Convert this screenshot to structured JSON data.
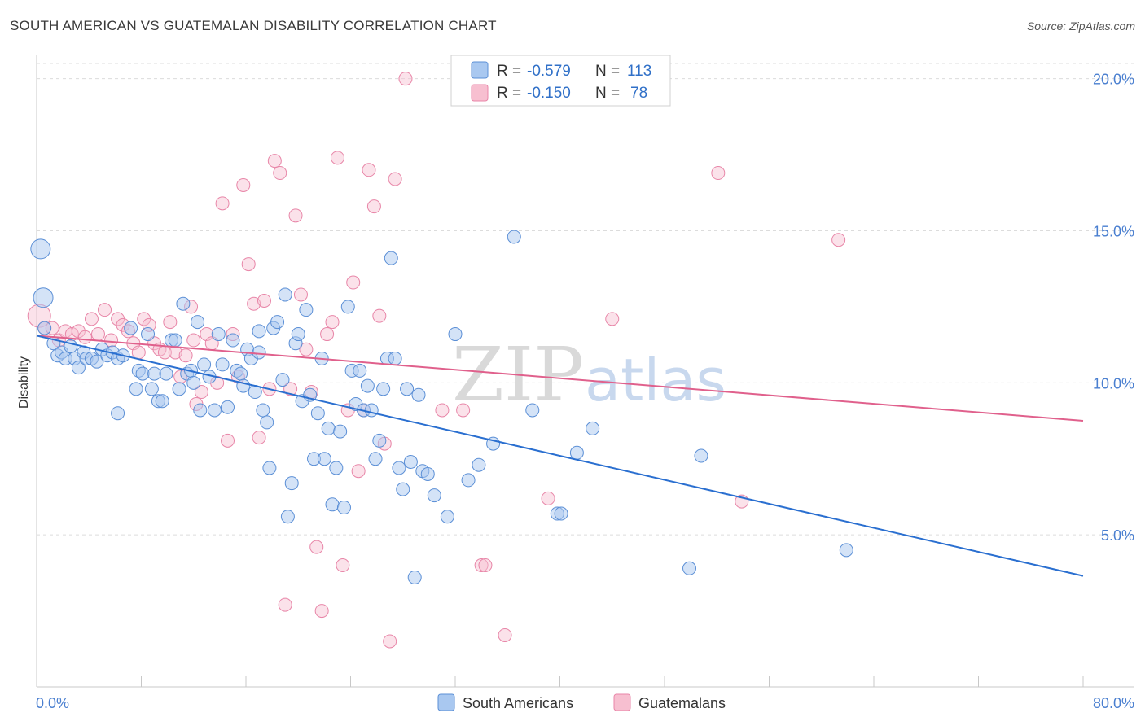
{
  "title": "SOUTH AMERICAN VS GUATEMALAN DISABILITY CORRELATION CHART",
  "source": "Source: ZipAtlas.com",
  "watermark": {
    "zip": "ZIP",
    "atlas": "atlas"
  },
  "colors": {
    "blue_fill": "#a9c8f0",
    "blue_stroke": "#5b8fd6",
    "blue_line": "#2a6fd0",
    "pink_fill": "#f7bfd0",
    "pink_stroke": "#e886a8",
    "pink_line": "#e0608c",
    "tick_text": "#4a7fd0"
  },
  "legend": {
    "rows": [
      {
        "r_label": "R =",
        "r_value": "-0.579",
        "n_label": "N =",
        "n_value": "113"
      },
      {
        "r_label": "R =",
        "r_value": "-0.150",
        "n_label": "N =",
        "n_value": "78"
      }
    ]
  },
  "bottom_legend": [
    "South Americans",
    "Guatemalans"
  ],
  "chart_data": {
    "type": "scatter",
    "title": "SOUTH AMERICAN VS GUATEMALAN DISABILITY CORRELATION CHART",
    "xlabel": "",
    "ylabel": "Disability",
    "xlim": [
      0,
      80
    ],
    "ylim": [
      0,
      20.5
    ],
    "x_tick_labels": [
      "0.0%",
      "80.0%"
    ],
    "y_ticks": [
      5,
      10,
      15,
      20
    ],
    "y_tick_labels": [
      "5.0%",
      "10.0%",
      "15.0%",
      "20.0%"
    ],
    "grid": "horizontal dashed",
    "legend_position": "top-center",
    "series": [
      {
        "name": "South Americans",
        "color": "#a9c8f0",
        "trend": {
          "x": [
            0,
            80
          ],
          "y": [
            11.55,
            3.65
          ]
        },
        "points": [
          [
            0.3,
            14.4
          ],
          [
            0.5,
            12.8
          ],
          [
            0.6,
            11.8
          ],
          [
            1.3,
            11.3
          ],
          [
            1.6,
            10.9
          ],
          [
            1.9,
            11.0
          ],
          [
            2.2,
            10.8
          ],
          [
            2.6,
            11.2
          ],
          [
            2.9,
            10.8
          ],
          [
            3.2,
            10.5
          ],
          [
            3.6,
            11.0
          ],
          [
            3.8,
            10.8
          ],
          [
            4.2,
            10.8
          ],
          [
            4.6,
            10.7
          ],
          [
            5.0,
            11.1
          ],
          [
            5.4,
            10.9
          ],
          [
            5.8,
            11.0
          ],
          [
            6.2,
            10.8
          ],
          [
            6.6,
            10.9
          ],
          [
            6.2,
            9.0
          ],
          [
            7.2,
            11.8
          ],
          [
            7.6,
            9.8
          ],
          [
            7.8,
            10.4
          ],
          [
            8.1,
            10.3
          ],
          [
            8.5,
            11.6
          ],
          [
            8.8,
            9.8
          ],
          [
            9.0,
            10.3
          ],
          [
            9.3,
            9.4
          ],
          [
            9.6,
            9.4
          ],
          [
            9.9,
            10.3
          ],
          [
            10.3,
            11.4
          ],
          [
            10.6,
            11.4
          ],
          [
            10.9,
            9.8
          ],
          [
            11.2,
            12.6
          ],
          [
            11.5,
            10.3
          ],
          [
            11.8,
            10.4
          ],
          [
            12.0,
            10.0
          ],
          [
            12.3,
            12.0
          ],
          [
            12.5,
            9.1
          ],
          [
            12.8,
            10.6
          ],
          [
            13.2,
            10.2
          ],
          [
            13.6,
            9.1
          ],
          [
            13.9,
            11.6
          ],
          [
            14.2,
            10.6
          ],
          [
            14.6,
            9.2
          ],
          [
            15.0,
            11.4
          ],
          [
            15.3,
            10.4
          ],
          [
            15.6,
            10.3
          ],
          [
            15.8,
            9.9
          ],
          [
            16.1,
            11.1
          ],
          [
            16.4,
            10.8
          ],
          [
            16.7,
            9.7
          ],
          [
            17.0,
            11.7
          ],
          [
            17.3,
            9.1
          ],
          [
            17.6,
            8.7
          ],
          [
            17.8,
            7.2
          ],
          [
            18.1,
            11.8
          ],
          [
            18.4,
            12.0
          ],
          [
            18.8,
            10.1
          ],
          [
            19.0,
            12.9
          ],
          [
            19.2,
            5.6
          ],
          [
            19.5,
            6.7
          ],
          [
            19.8,
            11.3
          ],
          [
            20.0,
            11.6
          ],
          [
            20.3,
            9.4
          ],
          [
            20.6,
            12.4
          ],
          [
            20.9,
            9.6
          ],
          [
            21.2,
            7.5
          ],
          [
            21.5,
            9.0
          ],
          [
            21.8,
            10.8
          ],
          [
            22.0,
            7.5
          ],
          [
            22.3,
            8.5
          ],
          [
            22.6,
            6.0
          ],
          [
            22.9,
            7.2
          ],
          [
            23.2,
            8.4
          ],
          [
            23.5,
            5.9
          ],
          [
            23.8,
            12.5
          ],
          [
            24.1,
            10.4
          ],
          [
            24.4,
            9.3
          ],
          [
            24.7,
            10.4
          ],
          [
            25.0,
            9.1
          ],
          [
            25.3,
            9.9
          ],
          [
            25.6,
            9.1
          ],
          [
            25.9,
            7.5
          ],
          [
            26.2,
            8.1
          ],
          [
            26.5,
            9.8
          ],
          [
            26.8,
            10.8
          ],
          [
            27.1,
            14.1
          ],
          [
            27.4,
            10.8
          ],
          [
            27.7,
            7.2
          ],
          [
            28.0,
            6.5
          ],
          [
            28.3,
            9.8
          ],
          [
            28.6,
            7.4
          ],
          [
            28.9,
            3.6
          ],
          [
            29.2,
            9.6
          ],
          [
            29.5,
            7.1
          ],
          [
            29.9,
            7.0
          ],
          [
            30.4,
            6.3
          ],
          [
            31.4,
            5.6
          ],
          [
            32.0,
            11.6
          ],
          [
            33.0,
            6.8
          ],
          [
            33.8,
            7.3
          ],
          [
            34.9,
            8.0
          ],
          [
            36.5,
            14.8
          ],
          [
            37.9,
            9.1
          ],
          [
            39.8,
            5.7
          ],
          [
            40.1,
            5.7
          ],
          [
            41.3,
            7.7
          ],
          [
            42.5,
            8.5
          ],
          [
            49.9,
            3.9
          ],
          [
            50.8,
            7.6
          ],
          [
            61.9,
            4.5
          ],
          [
            17.0,
            11.0
          ]
        ]
      },
      {
        "name": "Guatemalans",
        "color": "#f7bfd0",
        "trend": {
          "x": [
            0,
            80
          ],
          "y": [
            11.55,
            8.75
          ]
        },
        "points": [
          [
            0.2,
            12.2
          ],
          [
            0.6,
            11.8
          ],
          [
            1.2,
            11.8
          ],
          [
            1.7,
            11.4
          ],
          [
            2.2,
            11.7
          ],
          [
            2.7,
            11.6
          ],
          [
            3.2,
            11.7
          ],
          [
            3.7,
            11.5
          ],
          [
            4.2,
            12.1
          ],
          [
            4.7,
            11.6
          ],
          [
            5.2,
            12.4
          ],
          [
            5.7,
            11.4
          ],
          [
            6.2,
            12.1
          ],
          [
            6.6,
            11.9
          ],
          [
            7.0,
            11.7
          ],
          [
            7.4,
            11.3
          ],
          [
            7.8,
            11.0
          ],
          [
            8.2,
            12.1
          ],
          [
            8.6,
            11.9
          ],
          [
            9.0,
            11.3
          ],
          [
            9.4,
            11.1
          ],
          [
            9.8,
            11.0
          ],
          [
            10.2,
            12.0
          ],
          [
            10.6,
            11.0
          ],
          [
            11.0,
            10.2
          ],
          [
            11.4,
            10.9
          ],
          [
            11.8,
            12.5
          ],
          [
            12.2,
            9.3
          ],
          [
            12.6,
            9.7
          ],
          [
            13.0,
            11.6
          ],
          [
            13.4,
            11.3
          ],
          [
            13.8,
            10.0
          ],
          [
            14.2,
            15.9
          ],
          [
            14.6,
            8.1
          ],
          [
            15.0,
            11.6
          ],
          [
            15.4,
            10.2
          ],
          [
            15.8,
            16.5
          ],
          [
            16.2,
            13.9
          ],
          [
            16.6,
            12.6
          ],
          [
            17.0,
            8.2
          ],
          [
            17.4,
            12.7
          ],
          [
            17.8,
            9.8
          ],
          [
            18.2,
            17.3
          ],
          [
            18.6,
            16.9
          ],
          [
            19.0,
            2.7
          ],
          [
            19.4,
            9.8
          ],
          [
            19.8,
            15.5
          ],
          [
            20.2,
            12.9
          ],
          [
            20.6,
            11.1
          ],
          [
            21.0,
            9.7
          ],
          [
            21.4,
            4.6
          ],
          [
            21.8,
            2.5
          ],
          [
            22.2,
            11.6
          ],
          [
            22.6,
            12.0
          ],
          [
            23.0,
            17.4
          ],
          [
            23.4,
            4.0
          ],
          [
            23.8,
            9.1
          ],
          [
            24.2,
            13.3
          ],
          [
            24.6,
            7.1
          ],
          [
            25.0,
            9.1
          ],
          [
            25.4,
            17.0
          ],
          [
            25.8,
            15.8
          ],
          [
            26.2,
            12.2
          ],
          [
            26.6,
            8.0
          ],
          [
            27.0,
            1.5
          ],
          [
            27.4,
            16.7
          ],
          [
            28.2,
            20.0
          ],
          [
            34.0,
            4.0
          ],
          [
            34.3,
            4.0
          ],
          [
            35.8,
            1.7
          ],
          [
            31.0,
            9.1
          ],
          [
            32.6,
            9.1
          ],
          [
            39.1,
            6.2
          ],
          [
            44.0,
            12.1
          ],
          [
            52.1,
            16.9
          ],
          [
            53.9,
            6.1
          ],
          [
            61.3,
            14.7
          ],
          [
            12.0,
            11.4
          ]
        ]
      }
    ]
  }
}
